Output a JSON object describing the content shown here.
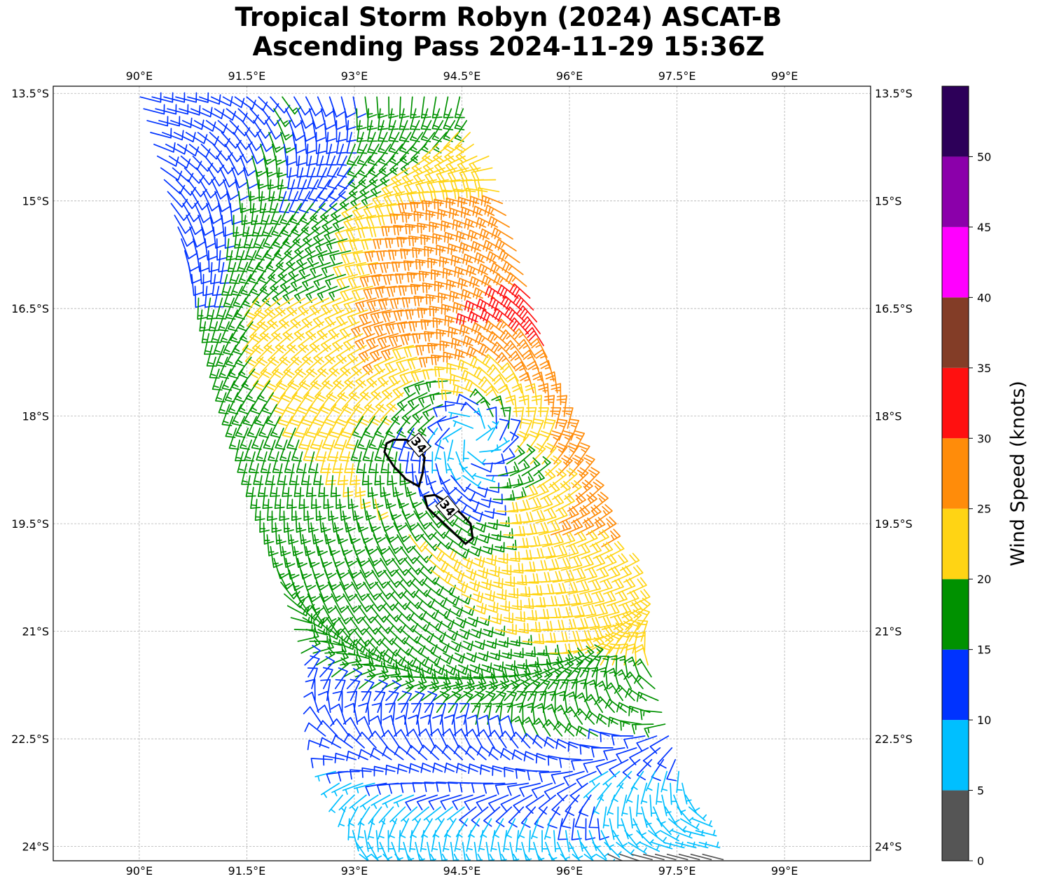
{
  "title": {
    "line1": "Tropical Storm Robyn (2024) ASCAT-B",
    "line2": "Ascending Pass 2024-11-29 15:36Z"
  },
  "map": {
    "lon_range": [
      88.8,
      100.2
    ],
    "lat_range": [
      -24.2,
      -13.4
    ],
    "lon_ticks": [
      {
        "value": 90.0,
        "label": "90°E"
      },
      {
        "value": 91.5,
        "label": "91.5°E"
      },
      {
        "value": 93.0,
        "label": "93°E"
      },
      {
        "value": 94.5,
        "label": "94.5°E"
      },
      {
        "value": 96.0,
        "label": "96°E"
      },
      {
        "value": 97.5,
        "label": "97.5°E"
      },
      {
        "value": 99.0,
        "label": "99°E"
      }
    ],
    "lat_ticks": [
      {
        "value": -13.5,
        "label": "13.5°S"
      },
      {
        "value": -15.0,
        "label": "15°S"
      },
      {
        "value": -16.5,
        "label": "16.5°S"
      },
      {
        "value": -18.0,
        "label": "18°S"
      },
      {
        "value": -19.5,
        "label": "19.5°S"
      },
      {
        "value": -21.0,
        "label": "21°S"
      },
      {
        "value": -22.5,
        "label": "22.5°S"
      },
      {
        "value": -24.0,
        "label": "24°S"
      }
    ],
    "grid": true,
    "storm_center": {
      "lon": 94.65,
      "lat": -18.3
    },
    "swath_corners": [
      {
        "lon": 90.0,
        "lat": -13.5
      },
      {
        "lon": 94.6,
        "lat": -13.5
      },
      {
        "lon": 98.0,
        "lat": -24.2
      },
      {
        "lon": 93.1,
        "lat": -24.2
      }
    ],
    "contours": [
      {
        "label": "34",
        "label_pos": {
          "lon": 93.9,
          "lat": -18.4
        },
        "points": [
          [
            93.55,
            -18.33
          ],
          [
            93.72,
            -18.33
          ],
          [
            93.88,
            -18.42
          ],
          [
            93.98,
            -18.58
          ],
          [
            93.95,
            -18.8
          ],
          [
            93.9,
            -18.98
          ],
          [
            93.72,
            -18.88
          ],
          [
            93.55,
            -18.7
          ],
          [
            93.42,
            -18.5
          ],
          [
            93.45,
            -18.38
          ],
          [
            93.55,
            -18.33
          ]
        ]
      },
      {
        "label": "34",
        "label_pos": {
          "lon": 94.3,
          "lat": -19.28
        },
        "points": [
          [
            93.98,
            -19.12
          ],
          [
            94.12,
            -19.1
          ],
          [
            94.3,
            -19.2
          ],
          [
            94.48,
            -19.35
          ],
          [
            94.62,
            -19.5
          ],
          [
            94.65,
            -19.7
          ],
          [
            94.55,
            -19.78
          ],
          [
            94.38,
            -19.62
          ],
          [
            94.2,
            -19.45
          ],
          [
            94.02,
            -19.28
          ],
          [
            93.98,
            -19.12
          ]
        ]
      }
    ]
  },
  "colorbar": {
    "label": "Wind Speed (knots)",
    "bins": [
      {
        "min": 0,
        "max": 5,
        "color": "#555555"
      },
      {
        "min": 5,
        "max": 10,
        "color": "#00bfff"
      },
      {
        "min": 10,
        "max": 15,
        "color": "#0033ff"
      },
      {
        "min": 15,
        "max": 20,
        "color": "#009100"
      },
      {
        "min": 20,
        "max": 25,
        "color": "#ffd414"
      },
      {
        "min": 25,
        "max": 30,
        "color": "#ff8c0a"
      },
      {
        "min": 30,
        "max": 35,
        "color": "#ff1010"
      },
      {
        "min": 35,
        "max": 40,
        "color": "#833d27"
      },
      {
        "min": 40,
        "max": 45,
        "color": "#ff00ff"
      },
      {
        "min": 45,
        "max": 50,
        "color": "#8b00aa"
      },
      {
        "min": 50,
        "max": 55,
        "color": "#2d0059"
      }
    ],
    "tick_labels": [
      "0",
      "5",
      "10",
      "15",
      "20",
      "25",
      "30",
      "35",
      "40",
      "45",
      "50"
    ]
  }
}
